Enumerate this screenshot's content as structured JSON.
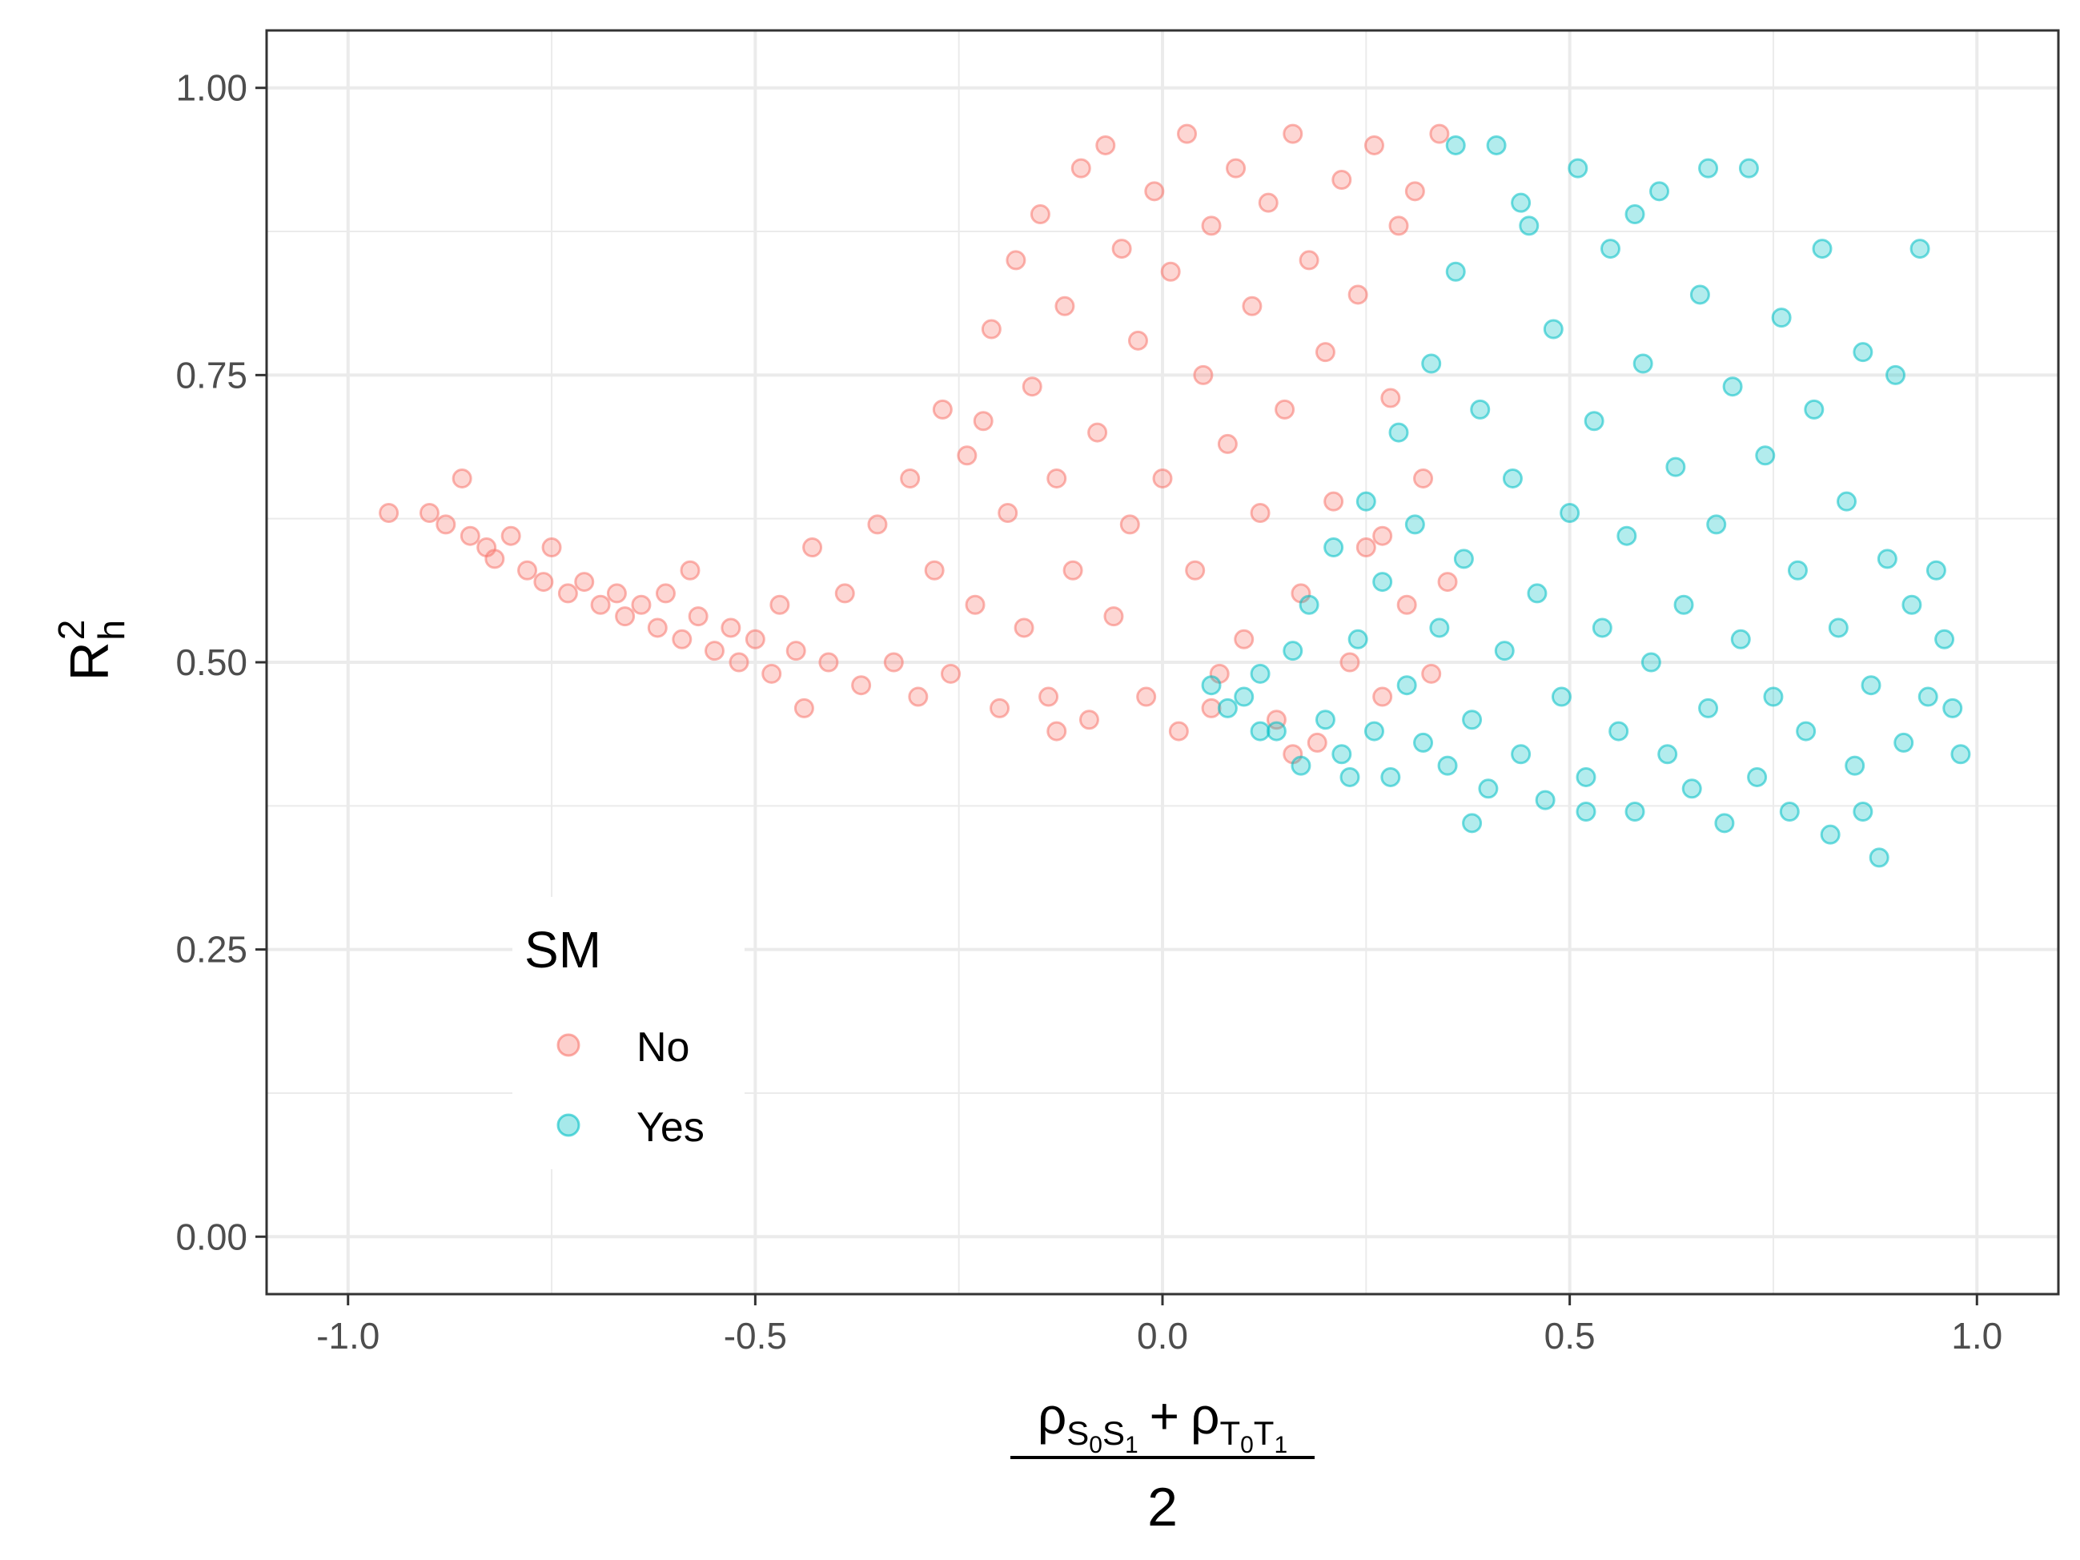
{
  "chart_data": {
    "type": "scatter",
    "xlabel": {
      "rho": "ρ",
      "sub1": "S",
      "sub1_sub_a": "0",
      "sub1_b": "S",
      "sub1_sub_b": "1",
      "plus": "+",
      "sub2": "T",
      "sub2_sub_a": "0",
      "sub2_b": "T",
      "sub2_sub_b": "1",
      "denominator": "2"
    },
    "ylabel": {
      "base": "R",
      "sup": "2",
      "sub": "h"
    },
    "xlim": [
      -1.1,
      1.1
    ],
    "ylim": [
      -0.05,
      1.05
    ],
    "x_ticks": [
      -1.0,
      -0.5,
      0.0,
      0.5,
      1.0
    ],
    "x_tick_labels": [
      "-1.0",
      "-0.5",
      "0.0",
      "0.5",
      "1.0"
    ],
    "y_ticks": [
      0.0,
      0.25,
      0.5,
      0.75,
      1.0
    ],
    "y_tick_labels": [
      "0.00",
      "0.25",
      "0.50",
      "0.75",
      "1.00"
    ],
    "grid": true,
    "legend": {
      "title": "SM",
      "position": "inside-bottom-left",
      "entries": [
        {
          "label": "No",
          "color": "#F8766D"
        },
        {
          "label": "Yes",
          "color": "#00BFC4"
        }
      ]
    },
    "series": [
      {
        "name": "No",
        "color": "#F8766D",
        "points": [
          [
            -0.9,
            0.63
          ],
          [
            -0.88,
            0.62
          ],
          [
            -0.86,
            0.66
          ],
          [
            -0.85,
            0.61
          ],
          [
            -0.83,
            0.6
          ],
          [
            -0.82,
            0.59
          ],
          [
            -0.8,
            0.61
          ],
          [
            -0.78,
            0.58
          ],
          [
            -0.76,
            0.57
          ],
          [
            -0.75,
            0.6
          ],
          [
            -0.73,
            0.56
          ],
          [
            -0.71,
            0.57
          ],
          [
            -0.69,
            0.55
          ],
          [
            -0.67,
            0.56
          ],
          [
            -0.66,
            0.54
          ],
          [
            -0.64,
            0.55
          ],
          [
            -0.62,
            0.53
          ],
          [
            -0.61,
            0.56
          ],
          [
            -0.59,
            0.52
          ],
          [
            -0.57,
            0.54
          ],
          [
            -0.55,
            0.51
          ],
          [
            -0.53,
            0.53
          ],
          [
            -0.52,
            0.5
          ],
          [
            -0.5,
            0.52
          ],
          [
            -0.48,
            0.49
          ],
          [
            -0.47,
            0.55
          ],
          [
            -0.45,
            0.51
          ],
          [
            -0.43,
            0.6
          ],
          [
            -0.41,
            0.5
          ],
          [
            -0.39,
            0.56
          ],
          [
            -0.37,
            0.48
          ],
          [
            -0.35,
            0.62
          ],
          [
            -0.33,
            0.5
          ],
          [
            -0.31,
            0.66
          ],
          [
            -0.3,
            0.47
          ],
          [
            -0.28,
            0.58
          ],
          [
            -0.27,
            0.72
          ],
          [
            -0.26,
            0.49
          ],
          [
            -0.24,
            0.68
          ],
          [
            -0.23,
            0.55
          ],
          [
            -0.21,
            0.79
          ],
          [
            -0.2,
            0.46
          ],
          [
            -0.19,
            0.63
          ],
          [
            -0.18,
            0.85
          ],
          [
            -0.17,
            0.53
          ],
          [
            -0.16,
            0.74
          ],
          [
            -0.15,
            0.89
          ],
          [
            -0.14,
            0.47
          ],
          [
            -0.13,
            0.66
          ],
          [
            -0.12,
            0.81
          ],
          [
            -0.11,
            0.58
          ],
          [
            -0.1,
            0.93
          ],
          [
            -0.09,
            0.45
          ],
          [
            -0.08,
            0.7
          ],
          [
            -0.07,
            0.95
          ],
          [
            -0.06,
            0.54
          ],
          [
            -0.05,
            0.86
          ],
          [
            -0.04,
            0.62
          ],
          [
            -0.03,
            0.78
          ],
          [
            -0.02,
            0.47
          ],
          [
            -0.01,
            0.91
          ],
          [
            0.0,
            0.66
          ],
          [
            0.01,
            0.84
          ],
          [
            0.02,
            0.44
          ],
          [
            0.03,
            0.96
          ],
          [
            0.04,
            0.58
          ],
          [
            0.05,
            0.75
          ],
          [
            0.06,
            0.88
          ],
          [
            0.07,
            0.49
          ],
          [
            0.08,
            0.69
          ],
          [
            0.09,
            0.93
          ],
          [
            0.1,
            0.52
          ],
          [
            0.11,
            0.81
          ],
          [
            0.12,
            0.63
          ],
          [
            0.13,
            0.9
          ],
          [
            0.14,
            0.45
          ],
          [
            0.15,
            0.72
          ],
          [
            0.16,
            0.96
          ],
          [
            0.17,
            0.56
          ],
          [
            0.18,
            0.85
          ],
          [
            0.19,
            0.43
          ],
          [
            0.2,
            0.77
          ],
          [
            0.21,
            0.64
          ],
          [
            0.22,
            0.92
          ],
          [
            0.23,
            0.5
          ],
          [
            0.24,
            0.82
          ],
          [
            0.25,
            0.6
          ],
          [
            0.26,
            0.95
          ],
          [
            0.27,
            0.47
          ],
          [
            0.28,
            0.73
          ],
          [
            0.29,
            0.88
          ],
          [
            0.3,
            0.55
          ],
          [
            0.31,
            0.91
          ],
          [
            0.32,
            0.66
          ],
          [
            0.33,
            0.49
          ],
          [
            0.34,
            0.96
          ],
          [
            0.35,
            0.57
          ],
          [
            -0.95,
            0.63
          ],
          [
            -0.58,
            0.58
          ],
          [
            -0.44,
            0.46
          ],
          [
            -0.22,
            0.71
          ],
          [
            -0.13,
            0.44
          ],
          [
            0.06,
            0.46
          ],
          [
            0.16,
            0.42
          ],
          [
            0.27,
            0.61
          ]
        ]
      },
      {
        "name": "Yes",
        "color": "#00BFC4",
        "points": [
          [
            0.06,
            0.48
          ],
          [
            0.08,
            0.46
          ],
          [
            0.1,
            0.47
          ],
          [
            0.12,
            0.49
          ],
          [
            0.14,
            0.44
          ],
          [
            0.16,
            0.51
          ],
          [
            0.17,
            0.41
          ],
          [
            0.18,
            0.55
          ],
          [
            0.2,
            0.45
          ],
          [
            0.21,
            0.6
          ],
          [
            0.22,
            0.42
          ],
          [
            0.24,
            0.52
          ],
          [
            0.25,
            0.64
          ],
          [
            0.26,
            0.44
          ],
          [
            0.27,
            0.57
          ],
          [
            0.28,
            0.4
          ],
          [
            0.29,
            0.7
          ],
          [
            0.3,
            0.48
          ],
          [
            0.31,
            0.62
          ],
          [
            0.32,
            0.43
          ],
          [
            0.33,
            0.76
          ],
          [
            0.34,
            0.53
          ],
          [
            0.35,
            0.41
          ],
          [
            0.36,
            0.84
          ],
          [
            0.37,
            0.59
          ],
          [
            0.38,
            0.45
          ],
          [
            0.39,
            0.72
          ],
          [
            0.4,
            0.39
          ],
          [
            0.41,
            0.95
          ],
          [
            0.42,
            0.51
          ],
          [
            0.43,
            0.66
          ],
          [
            0.44,
            0.42
          ],
          [
            0.45,
            0.88
          ],
          [
            0.46,
            0.56
          ],
          [
            0.47,
            0.38
          ],
          [
            0.48,
            0.79
          ],
          [
            0.49,
            0.47
          ],
          [
            0.5,
            0.63
          ],
          [
            0.51,
            0.93
          ],
          [
            0.52,
            0.4
          ],
          [
            0.53,
            0.71
          ],
          [
            0.54,
            0.53
          ],
          [
            0.55,
            0.86
          ],
          [
            0.56,
            0.44
          ],
          [
            0.57,
            0.61
          ],
          [
            0.58,
            0.37
          ],
          [
            0.59,
            0.76
          ],
          [
            0.6,
            0.5
          ],
          [
            0.61,
            0.91
          ],
          [
            0.62,
            0.42
          ],
          [
            0.63,
            0.67
          ],
          [
            0.64,
            0.55
          ],
          [
            0.65,
            0.39
          ],
          [
            0.66,
            0.82
          ],
          [
            0.67,
            0.46
          ],
          [
            0.68,
            0.62
          ],
          [
            0.69,
            0.36
          ],
          [
            0.7,
            0.74
          ],
          [
            0.71,
            0.52
          ],
          [
            0.72,
            0.93
          ],
          [
            0.73,
            0.4
          ],
          [
            0.74,
            0.68
          ],
          [
            0.75,
            0.47
          ],
          [
            0.76,
            0.8
          ],
          [
            0.77,
            0.37
          ],
          [
            0.78,
            0.58
          ],
          [
            0.79,
            0.44
          ],
          [
            0.8,
            0.72
          ],
          [
            0.81,
            0.86
          ],
          [
            0.82,
            0.35
          ],
          [
            0.83,
            0.53
          ],
          [
            0.84,
            0.64
          ],
          [
            0.85,
            0.41
          ],
          [
            0.86,
            0.77
          ],
          [
            0.87,
            0.48
          ],
          [
            0.88,
            0.33
          ],
          [
            0.89,
            0.59
          ],
          [
            0.9,
            0.75
          ],
          [
            0.91,
            0.43
          ],
          [
            0.92,
            0.55
          ],
          [
            0.93,
            0.86
          ],
          [
            0.94,
            0.47
          ],
          [
            0.95,
            0.58
          ],
          [
            0.96,
            0.52
          ],
          [
            0.97,
            0.46
          ],
          [
            0.98,
            0.42
          ],
          [
            0.36,
            0.95
          ],
          [
            0.44,
            0.9
          ],
          [
            0.58,
            0.89
          ],
          [
            0.67,
            0.93
          ],
          [
            0.12,
            0.44
          ],
          [
            0.23,
            0.4
          ],
          [
            0.38,
            0.36
          ],
          [
            0.52,
            0.37
          ],
          [
            0.86,
            0.37
          ]
        ]
      }
    ]
  }
}
